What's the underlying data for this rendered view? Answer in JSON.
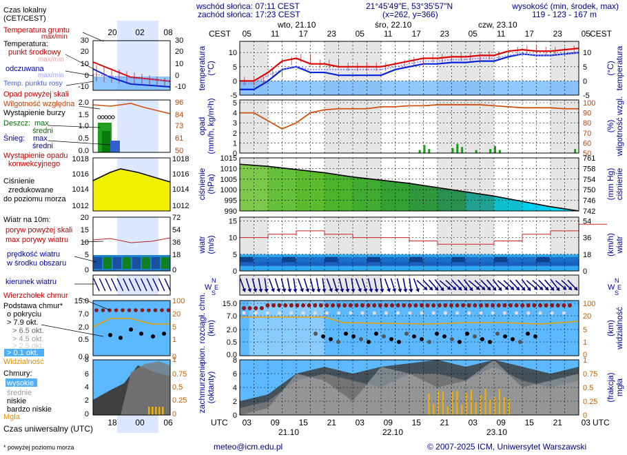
{
  "header": {
    "sunrise": "wschód słońca: 07:11 CEST",
    "sunset": "zachód słońca: 17:23 CEST",
    "coords": "21°45'49\"E, 53°35'57\"N",
    "grid": "(x=262, y=366)",
    "height_label": "wysokość (min, środek, max)",
    "height_values": "119 - 123 - 167 m"
  },
  "left_panel": {
    "time_label": "Czas lokalny\n(CET/CEST)",
    "time_ticks": [
      "20",
      "02",
      "08"
    ],
    "utc_ticks": [
      "18",
      "00",
      "06"
    ],
    "utc_label": "Czas uniwersalny (UTC)",
    "temp": {
      "soil": "Temperatura gruntu",
      "soil2": "max/min",
      "title": "Temperatura:",
      "mid": "punkt środkowy",
      "maxmin": "max/min",
      "feels": "odczuwana",
      "feels_mm": "max/min",
      "dew": "Temp. punktu rosy",
      "yticks": [
        "30",
        "20",
        "10",
        "0",
        "-10"
      ]
    },
    "precip": {
      "above": "Opad powyżej skali",
      "humidity": "Wilgotność względna",
      "storm": "Wystąpienie burzy",
      "rain": "Deszcz:",
      "rain_max": "max",
      "rain_avg": "średni",
      "snow": "Śnieg:",
      "snow_max": "max",
      "snow_avg": "średni",
      "conv": "Wystąpienie opadu",
      "conv2": "konwekcyjnego",
      "yticks": [
        "2.0",
        "1.5",
        "1.0",
        "0.5",
        "0.0"
      ],
      "yticks_r": [
        "96",
        "84",
        "73",
        "61",
        "50"
      ]
    },
    "pressure": {
      "l1": "Ciśnienie",
      "l2": "zredukowane",
      "l3": "do poziomu morza",
      "yticks": [
        "1018",
        "1016",
        "1014",
        "1012"
      ],
      "yticks_r": [
        "1018",
        "1016",
        "1014",
        "1012"
      ]
    },
    "wind": {
      "title": "Wiatr na 10m:",
      "gust_above": "poryw powyżej skali",
      "gust_max": "max porywy wiatru",
      "avg": "prędkość wiatru",
      "avg2": "w środku obszaru",
      "yticks": [
        "20",
        "15",
        "10",
        "5",
        "0"
      ],
      "yticks_r": [
        "72",
        "54",
        "36",
        "18",
        "0"
      ]
    },
    "winddir": {
      "label": "kierunek wiatru"
    },
    "clouds": {
      "top": "Wierzchołek chmur",
      "base": "Podstawa chmur*",
      "base2": "o pokryciu",
      "c79": "> 7.9 okt.",
      "c65": "> 6.5 okt.",
      "c45": "> 4.5 okt.",
      "c25": "> 2.5 okt.",
      "c01": "> 0.1 okt.",
      "vis": "Widzialność",
      "yticks": [
        "15.0",
        "7.0",
        "2.0",
        "0.5",
        "0.0"
      ],
      "yticks_r": [
        "100",
        "20",
        "5",
        "1",
        "0"
      ]
    },
    "cover": {
      "title": "Chmury:",
      "high": "wysokie",
      "mid": "średnie",
      "low": "niskie",
      "vlow": "bardzo niskie",
      "fog": "Mgła",
      "yticks": [
        "8",
        "6",
        "4",
        "2",
        "0"
      ],
      "yticks_r": [
        "1",
        "0.75",
        "0.5",
        "0.25",
        "0"
      ]
    },
    "footnote": "* powyżej poziomu morza"
  },
  "main": {
    "cest": "CEST",
    "utc": "UTC",
    "days_top": [
      "wto, 21.10",
      "śro, 22.10",
      "czw, 23.10"
    ],
    "hours_top": [
      "05",
      "11",
      "17",
      "23",
      "05",
      "11",
      "17",
      "23",
      "05",
      "11",
      "17",
      "23",
      "05"
    ],
    "hours_bottom": [
      "03",
      "09",
      "15",
      "21",
      "03",
      "09",
      "15",
      "21",
      "03",
      "09",
      "15",
      "21",
      "03"
    ],
    "days_bottom": [
      "21.10",
      "22.10",
      "23.10"
    ],
    "temp_label": "temperatura\n(°C)",
    "temp_label_r": "(°C)\ntemperatura",
    "temp_yticks": [
      "10",
      "5",
      "0",
      "-5"
    ],
    "precip_label": "opad\n(mm/h, kg/m²h)",
    "precip_label_r": "(%)\nwilgotność wzgl.",
    "precip_yticks": [
      "5",
      "4",
      "3",
      "2",
      "1",
      "0"
    ],
    "precip_yticks_r": [
      "100",
      "90",
      "80",
      "70",
      "60",
      "50"
    ],
    "press_label": "ciśnienie\n(hPa)",
    "press_label_r": "(mm Hg)\nciśnienie",
    "press_yticks": [
      "1015",
      "1010",
      "1005",
      "1000",
      "995",
      "990"
    ],
    "press_yticks_r": [
      "761",
      "758",
      "754",
      "750",
      "746",
      "742"
    ],
    "wind_label": "wiatr\n(m/s)",
    "wind_label_r": "(km/h)\nwiatr",
    "wind_yticks": [
      "15",
      "10",
      "5",
      "0"
    ],
    "wind_yticks_r": [
      "54",
      "36",
      "18",
      "0"
    ],
    "cloud_label": "pion. rozciągł. chm.\n(km)",
    "cloud_label_r": "(km)\nwidzialność",
    "cloud_yticks": [
      "15.0",
      "7.0",
      "2.0",
      "0.5",
      "0.0"
    ],
    "cloud_yticks_r": [
      "100",
      "20",
      "5",
      "1",
      "0"
    ],
    "cover_label": "zachmurzenie\n(oktanty)",
    "cover_label_r": "(frakcja)\nmgła",
    "cover_yticks": [
      "8",
      "6",
      "4",
      "2",
      "0"
    ],
    "cover_yticks_r": [
      "1",
      "0.75",
      "0.5",
      "0.25",
      "0"
    ]
  },
  "footer": {
    "email": "meteo@icm.edu.pl",
    "copyright": "© 2007-2025 ICM, Uniwersytet Warszawski"
  },
  "chart_data": [
    {
      "type": "line",
      "title": "temperatura",
      "ylabel": "temperatura (°C)",
      "ylim": [
        -5,
        12
      ],
      "x_hours_from_start": [
        0,
        3,
        6,
        9,
        12,
        15,
        18,
        21,
        24,
        27,
        30,
        33,
        36,
        39,
        42,
        45,
        48,
        51,
        54,
        57,
        60,
        63,
        66,
        69,
        72
      ],
      "series": [
        {
          "name": "punkt środkowy",
          "values": [
            0,
            0,
            3,
            7,
            8,
            6,
            6,
            5,
            5,
            5,
            5,
            6,
            7,
            8,
            8,
            8.5,
            8.5,
            9,
            9,
            10.5,
            11,
            10.5,
            10.5,
            11,
            11.5
          ]
        },
        {
          "name": "odczuwana",
          "values": [
            -3,
            -3,
            0,
            4,
            5,
            3,
            3,
            2,
            2,
            2,
            2,
            4,
            5,
            6,
            6,
            6.5,
            6.5,
            7,
            7,
            8.5,
            9.5,
            9,
            9,
            9.5,
            10
          ]
        },
        {
          "name": "Temp. punktu rosy",
          "values": [
            -1,
            -1,
            2,
            4,
            5,
            4,
            4,
            4,
            4,
            4,
            4,
            5,
            6,
            7,
            7,
            7.5,
            7.5,
            8,
            8,
            9,
            9.5,
            9,
            9,
            9.5,
            10
          ]
        }
      ]
    },
    {
      "type": "line",
      "title": "wilgotność",
      "ylabel": "wilgotność wzgl. (%)",
      "ylim": [
        50,
        100
      ],
      "x_hours_from_start": [
        0,
        3,
        6,
        9,
        12,
        15,
        18,
        21,
        24,
        27,
        30,
        33,
        36,
        39,
        42,
        45,
        48,
        51,
        54,
        57,
        60,
        63,
        66,
        69,
        72
      ],
      "series": [
        {
          "name": "Wilgotność względna",
          "values": [
            90,
            90,
            82,
            74,
            80,
            90,
            93,
            94,
            94,
            94,
            96,
            96,
            97,
            97,
            98,
            98,
            98,
            98,
            97,
            96,
            95,
            95,
            95,
            94,
            94
          ]
        }
      ]
    },
    {
      "type": "area",
      "title": "ciśnienie",
      "ylabel": "ciśnienie (hPa)",
      "ylim": [
        990,
        1015
      ],
      "x_hours_from_start": [
        0,
        6,
        12,
        18,
        24,
        30,
        36,
        42,
        48,
        54,
        60,
        66,
        72
      ],
      "series": [
        {
          "name": "Ciśnienie zredukowane do poziomu morza",
          "values": [
            1012,
            1011,
            1009.5,
            1008,
            1006,
            1004.5,
            1003,
            1001,
            999,
            997,
            994.5,
            992,
            990
          ]
        }
      ]
    },
    {
      "type": "line",
      "title": "wiatr",
      "ylabel": "wiatr (m/s)",
      "ylim": [
        0,
        15
      ],
      "x_hours_from_start": [
        0,
        6,
        12,
        18,
        24,
        30,
        36,
        42,
        48,
        54,
        60,
        66,
        72
      ],
      "series": [
        {
          "name": "max porywy wiatru",
          "values": [
            10,
            11,
            12,
            11,
            10,
            10,
            9,
            8,
            8,
            9,
            11,
            12,
            14
          ]
        },
        {
          "name": "prędkość wiatru",
          "values": [
            3,
            3.5,
            4,
            4,
            3.5,
            3.5,
            3.5,
            3.5,
            3.5,
            3.5,
            4,
            4.5,
            5
          ]
        }
      ]
    },
    {
      "type": "line",
      "title": "zachmurzenie",
      "ylabel": "zachmurzenie (oktanty)",
      "ylim": [
        0,
        8
      ],
      "x_hours_from_start": [
        0,
        6,
        12,
        18,
        24,
        30,
        36,
        42,
        48,
        54,
        60,
        66,
        72
      ],
      "series": [
        {
          "name": "niskie",
          "values": [
            2,
            3,
            6,
            7,
            6,
            7,
            7.5,
            8,
            7,
            8,
            7,
            6,
            7
          ]
        },
        {
          "name": "średnie",
          "values": [
            1,
            2,
            5,
            6,
            5,
            4,
            6,
            6,
            5,
            7,
            5,
            4,
            5
          ]
        },
        {
          "name": "wysokie",
          "values": [
            0,
            1,
            6,
            5,
            2,
            7,
            6,
            4,
            5,
            8,
            4,
            5,
            6
          ]
        }
      ]
    }
  ]
}
